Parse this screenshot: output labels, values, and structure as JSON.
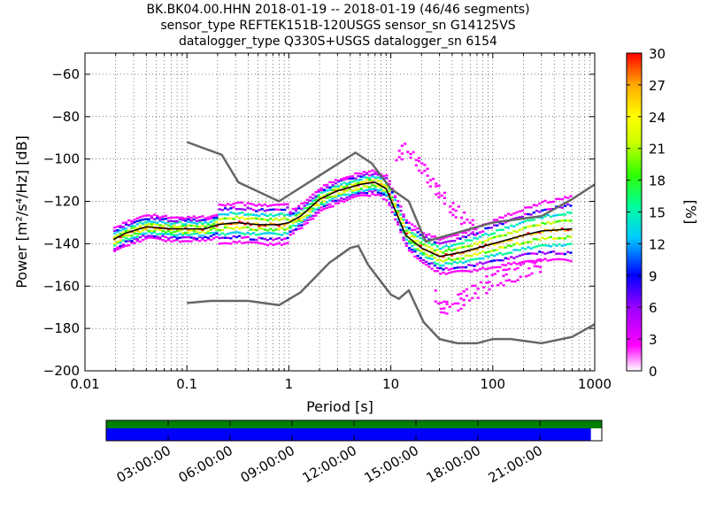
{
  "title_lines": [
    "BK.BK04.00.HHN   2018-01-19 -- 2018-01-19  (46/46 segments)",
    "sensor_type REFTEK151B-120USGS sensor_sn G14125VS",
    "datalogger_type Q330S+USGS datalogger_sn 6154"
  ],
  "chart_data": {
    "type": "heatmap",
    "xlabel": "Period [s]",
    "ylabel": "Power [m²/s⁴/Hz] [dB]",
    "xscale": "log",
    "xlim": [
      0.01,
      1000
    ],
    "ylim": [
      -200,
      -50
    ],
    "x_ticks": [
      0.01,
      0.1,
      1,
      10,
      100,
      1000
    ],
    "x_tick_labels": [
      "0.01",
      "0.1",
      "1",
      "10",
      "100",
      "1000"
    ],
    "y_ticks": [
      -200,
      -180,
      -160,
      -140,
      -120,
      -100,
      -80,
      -60
    ],
    "y_tick_labels": [
      "−200",
      "−180",
      "−160",
      "−140",
      "−120",
      "−100",
      "−80",
      "−60"
    ],
    "grid": true,
    "colorbar": {
      "label": "[%]",
      "range": [
        0,
        30
      ],
      "ticks": [
        0,
        3,
        6,
        9,
        12,
        15,
        18,
        21,
        24,
        27,
        30
      ],
      "colors": [
        "#ffffff",
        "#ff00ff",
        "#9900ff",
        "#0000ff",
        "#00ccff",
        "#00ff99",
        "#33ff00",
        "#ccff00",
        "#ffff00",
        "#ffaa00",
        "#ff0000"
      ]
    },
    "mode_curve": [
      [
        0.019,
        -138
      ],
      [
        0.025,
        -135
      ],
      [
        0.04,
        -132
      ],
      [
        0.07,
        -133
      ],
      [
        0.1,
        -133
      ],
      [
        0.15,
        -133
      ],
      [
        0.2,
        -131
      ],
      [
        0.3,
        -130
      ],
      [
        0.5,
        -131
      ],
      [
        0.8,
        -131
      ],
      [
        1.0,
        -130
      ],
      [
        1.3,
        -127
      ],
      [
        2.0,
        -119
      ],
      [
        3.0,
        -115
      ],
      [
        5.0,
        -112
      ],
      [
        7.0,
        -111
      ],
      [
        9.0,
        -114
      ],
      [
        11.0,
        -124
      ],
      [
        14.0,
        -136
      ],
      [
        20.0,
        -142
      ],
      [
        30.0,
        -146
      ],
      [
        50.0,
        -144
      ],
      [
        100.0,
        -140
      ],
      [
        200.0,
        -136
      ],
      [
        300.0,
        -134
      ],
      [
        600.0,
        -133
      ]
    ],
    "nhnm": [
      [
        0.1,
        -92
      ],
      [
        0.22,
        -98
      ],
      [
        0.32,
        -111
      ],
      [
        0.8,
        -120
      ],
      [
        4.5,
        -97
      ],
      [
        6.5,
        -102
      ],
      [
        10.0,
        -114
      ],
      [
        15.0,
        -120
      ],
      [
        22.0,
        -139
      ],
      [
        100.0,
        -130
      ],
      [
        300.0,
        -127
      ],
      [
        600.0,
        -119
      ],
      [
        1000.0,
        -112
      ]
    ],
    "nlnm": [
      [
        0.1,
        -168
      ],
      [
        0.17,
        -167
      ],
      [
        0.4,
        -167
      ],
      [
        0.8,
        -169
      ],
      [
        1.3,
        -163
      ],
      [
        2.5,
        -149
      ],
      [
        4.0,
        -142
      ],
      [
        4.8,
        -141
      ],
      [
        6.0,
        -150
      ],
      [
        10.0,
        -164
      ],
      [
        12.0,
        -166
      ],
      [
        15.0,
        -162
      ],
      [
        21.0,
        -177
      ],
      [
        30.0,
        -185
      ],
      [
        45.0,
        -187
      ],
      [
        70.0,
        -187
      ],
      [
        100.0,
        -185
      ],
      [
        150.0,
        -185
      ],
      [
        300.0,
        -187
      ],
      [
        600.0,
        -184
      ],
      [
        1000.0,
        -178
      ]
    ],
    "secondary_band": [
      [
        11.0,
        -100
      ],
      [
        13.0,
        -96
      ],
      [
        16.0,
        -97
      ],
      [
        20.0,
        -105
      ],
      [
        28.0,
        -115
      ],
      [
        45.0,
        -126
      ],
      [
        70.0,
        -133
      ]
    ],
    "low_band": [
      [
        25.0,
        -162
      ],
      [
        30.0,
        -170
      ],
      [
        40.0,
        -169
      ],
      [
        70.0,
        -162
      ],
      [
        100.0,
        -157
      ],
      [
        200.0,
        -153
      ],
      [
        300.0,
        -150
      ]
    ],
    "timeline": {
      "tick_labels": [
        "03:00:00",
        "06:00:00",
        "09:00:00",
        "12:00:00",
        "15:00:00",
        "18:00:00",
        "21:00:00"
      ],
      "data_coverage_fraction": 1.0,
      "psd_coverage_fraction": 0.978,
      "data_color": "#008000",
      "psd_color": "#0000ff"
    }
  }
}
